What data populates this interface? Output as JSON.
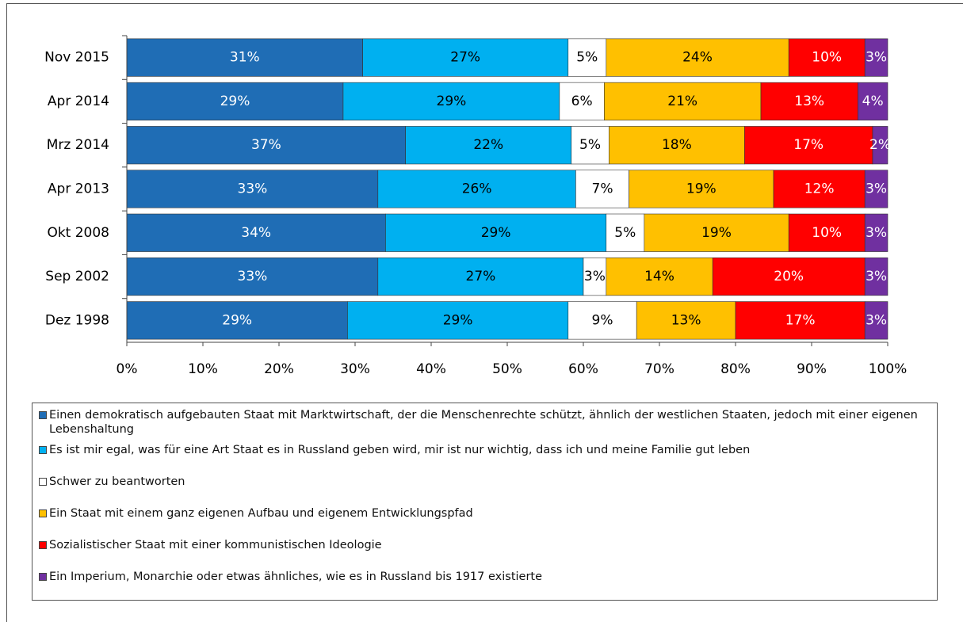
{
  "chart_data": {
    "type": "bar",
    "orientation": "horizontal",
    "stacking": "percent",
    "categories": [
      "Nov 2015",
      "Apr 2014",
      "Mrz 2014",
      "Apr 2013",
      "Okt 2008",
      "Sep 2002",
      "Dez 1998"
    ],
    "series": [
      {
        "name": "Einen demokratisch aufgebauten Staat mit Marktwirtschaft, der die Menschenrechte schützt, ähnlich der westlichen Staaten, jedoch mit einer eigenen Lebenshaltung",
        "color": "#1f6db5",
        "label_color": "#ffffff",
        "values": [
          31,
          29,
          37,
          33,
          34,
          33,
          29
        ],
        "value_labels": [
          "31%",
          "29%",
          "37%",
          "33%",
          "34%",
          "33%",
          "29%"
        ]
      },
      {
        "name": "Es ist mir egal, was für eine Art Staat es in Russland geben wird, mir ist nur wichtig, dass ich und meine Familie gut leben",
        "color": "#00b0f0",
        "label_color": "#000000",
        "values": [
          27,
          29,
          22,
          26,
          29,
          27,
          29
        ],
        "value_labels": [
          "27%",
          "29%",
          "22%",
          "26%",
          "29%",
          "27%",
          "29%"
        ]
      },
      {
        "name": "Schwer zu beantworten",
        "color": "#ffffff",
        "label_color": "#000000",
        "values": [
          5,
          6,
          5,
          7,
          5,
          3,
          9
        ],
        "value_labels": [
          "5%",
          "6%",
          "5%",
          "7%",
          "5%",
          "3%",
          "9%"
        ]
      },
      {
        "name": "Ein Staat mit einem ganz eigenen Aufbau und eigenem Entwicklungspfad",
        "color": "#ffc000",
        "label_color": "#000000",
        "values": [
          24,
          21,
          18,
          19,
          19,
          14,
          13
        ],
        "value_labels": [
          "24%",
          "21%",
          "18%",
          "19%",
          "19%",
          "14%",
          "13%"
        ]
      },
      {
        "name": "Sozialistischer Staat mit einer kommunistischen Ideologie",
        "color": "#ff0000",
        "label_color": "#ffffff",
        "values": [
          10,
          13,
          17,
          12,
          10,
          20,
          17
        ],
        "value_labels": [
          "10%",
          "13%",
          "17%",
          "12%",
          "10%",
          "20%",
          "17%"
        ]
      },
      {
        "name": "Ein Imperium, Monarchie oder etwas ähnliches, wie es in Russland bis 1917 existierte",
        "color": "#7030a0",
        "label_color": "#ffffff",
        "values": [
          3,
          4,
          2,
          3,
          3,
          3,
          3
        ],
        "value_labels": [
          "3%",
          "4%",
          "2%",
          "3%",
          "3%",
          "3%",
          "3%"
        ]
      }
    ],
    "xlim": [
      0,
      100
    ],
    "xticks": [
      {
        "value": 0,
        "label": "0%"
      },
      {
        "value": 10,
        "label": "10%"
      },
      {
        "value": 20,
        "label": "20%"
      },
      {
        "value": 30,
        "label": "30%"
      },
      {
        "value": 40,
        "label": "40%"
      },
      {
        "value": 50,
        "label": "50%"
      },
      {
        "value": 60,
        "label": "60%"
      },
      {
        "value": 70,
        "label": "70%"
      },
      {
        "value": 80,
        "label": "80%"
      },
      {
        "value": 90,
        "label": "90%"
      },
      {
        "value": 100,
        "label": "100%"
      }
    ],
    "legend": "bottom"
  }
}
